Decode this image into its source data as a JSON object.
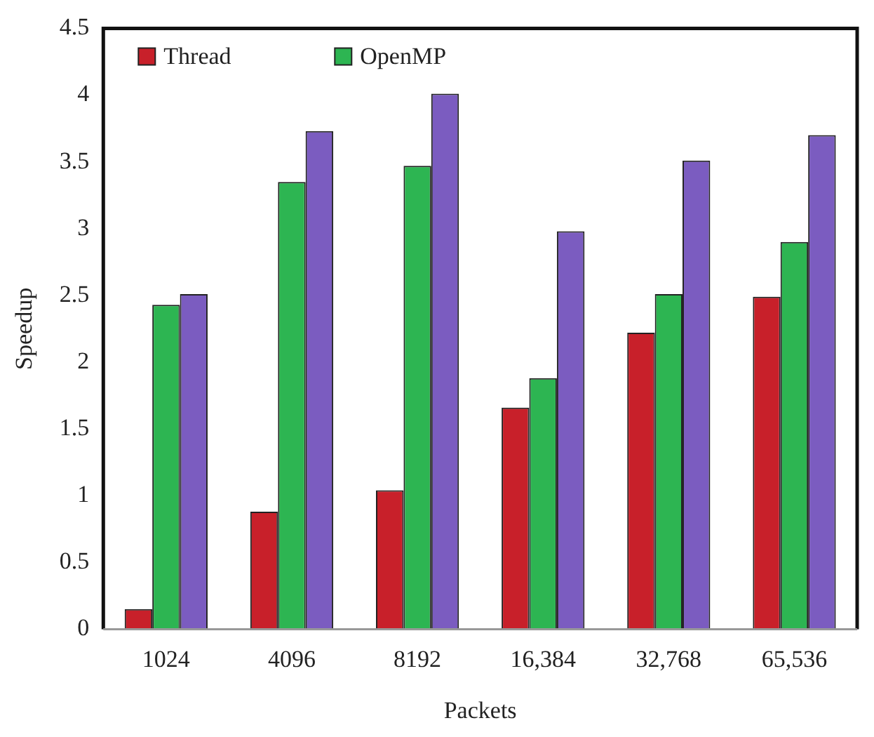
{
  "chart_data": {
    "type": "bar",
    "xlabel": "Packets",
    "ylabel": "Speedup",
    "categories": [
      "1024",
      "4096",
      "8192",
      "16,384",
      "32,768",
      "65,536"
    ],
    "series": [
      {
        "name": "Thread",
        "color": "#c8202a",
        "values": [
          0.15,
          0.88,
          1.04,
          1.66,
          2.22,
          2.49
        ]
      },
      {
        "name": "OpenMP",
        "color": "#2db552",
        "values": [
          2.43,
          3.35,
          3.47,
          1.88,
          2.51,
          2.9
        ]
      },
      {
        "color": "#7b5cc0",
        "values": [
          2.51,
          3.73,
          4.01,
          2.98,
          3.51,
          3.7
        ]
      }
    ],
    "ylim": [
      0,
      4.5
    ],
    "yticks": [
      0,
      0.5,
      1,
      1.5,
      2,
      2.5,
      3,
      3.5,
      4,
      4.5
    ],
    "grid": false,
    "legend": "top left"
  }
}
